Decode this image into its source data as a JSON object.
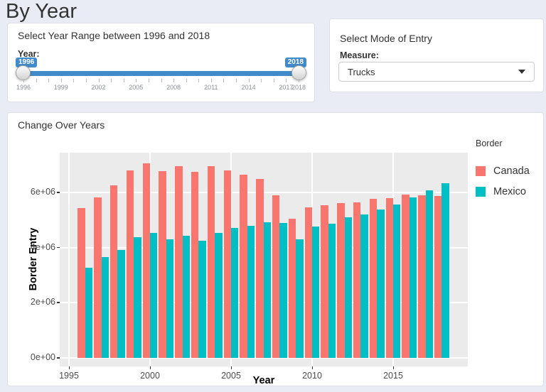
{
  "page": {
    "title": "By Year"
  },
  "year_range_panel": {
    "title": "Select Year Range between 1996 and 2018",
    "slider_label": "Year:",
    "min": 1996,
    "max": 2018,
    "from_label": "1996",
    "to_label": "2018",
    "tick_labels": [
      "1996",
      "1999",
      "2002",
      "2005",
      "2008",
      "2011",
      "2014",
      "2017",
      "2018"
    ],
    "accent_color": "#428bca"
  },
  "mode_panel": {
    "title": "Select Mode of Entry",
    "measure_label": "Measure:",
    "selected_value": "Trucks"
  },
  "chart_panel": {
    "title": "Change Over Years"
  },
  "chart_data": {
    "type": "bar",
    "title": "Change Over Years",
    "xlabel": "Year",
    "ylabel": "Border Entry",
    "legend_title": "Border",
    "legend_position": "right",
    "grid": true,
    "panel_background": "#ebebeb",
    "x": [
      1996,
      1997,
      1998,
      1999,
      2000,
      2001,
      2002,
      2003,
      2004,
      2005,
      2006,
      2007,
      2008,
      2009,
      2010,
      2011,
      2012,
      2013,
      2014,
      2015,
      2016,
      2017,
      2018
    ],
    "series": [
      {
        "name": "Canada",
        "color": "#F8766D",
        "values": [
          5440000,
          5820000,
          6270000,
          6810000,
          7050000,
          6780000,
          6940000,
          6740000,
          6940000,
          6800000,
          6640000,
          6480000,
          5900000,
          5040000,
          5460000,
          5530000,
          5610000,
          5640000,
          5780000,
          5800000,
          5910000,
          5890000,
          5870000
        ]
      },
      {
        "name": "Mexico",
        "color": "#00BFC4",
        "values": [
          3260000,
          3650000,
          3910000,
          4370000,
          4540000,
          4310000,
          4440000,
          4240000,
          4530000,
          4710000,
          4800000,
          4910000,
          4880000,
          4310000,
          4770000,
          4860000,
          5090000,
          5190000,
          5390000,
          5550000,
          5830000,
          6090000,
          6340000
        ]
      }
    ],
    "x_ticks": [
      1995,
      2000,
      2005,
      2010,
      2015
    ],
    "y_ticks": [
      {
        "value": 0,
        "label": "0e+00"
      },
      {
        "value": 2000000,
        "label": "2e+06"
      },
      {
        "value": 4000000,
        "label": "4e+06"
      },
      {
        "value": 6000000,
        "label": "6e+06"
      }
    ],
    "ylim": [
      0,
      7450000
    ],
    "xlim": [
      1994.4,
      2019.6
    ]
  }
}
